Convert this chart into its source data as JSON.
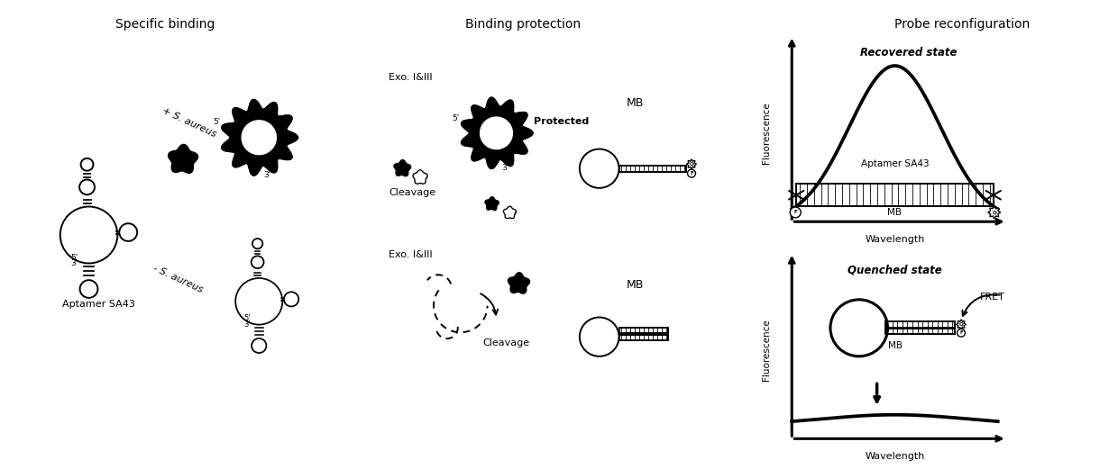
{
  "title_specific": "Specific binding",
  "title_binding": "Binding protection",
  "title_probe": "Probe reconfiguration",
  "recovered_state": "Recovered state",
  "quenched_state": "Quenched state",
  "aptamer_sa43_label": "Aptamer SA43",
  "mb_label": "MB",
  "fluorescence_label": "Fluorescence",
  "wavelength_label": "Wavelength",
  "exo_label": "Exo. I&III",
  "cleavage_label": "Cleavage",
  "protected_label": "Protected",
  "fret_label": "FRET",
  "plus_s_aureus": "+ S. aureus",
  "minus_s_aureus": "- S. aureus",
  "aptamer_sa43_bottom": "Aptamer SA43",
  "bg_color": "#ffffff",
  "line_color": "#000000",
  "fig_width": 12.4,
  "fig_height": 5.21,
  "dpi": 100
}
